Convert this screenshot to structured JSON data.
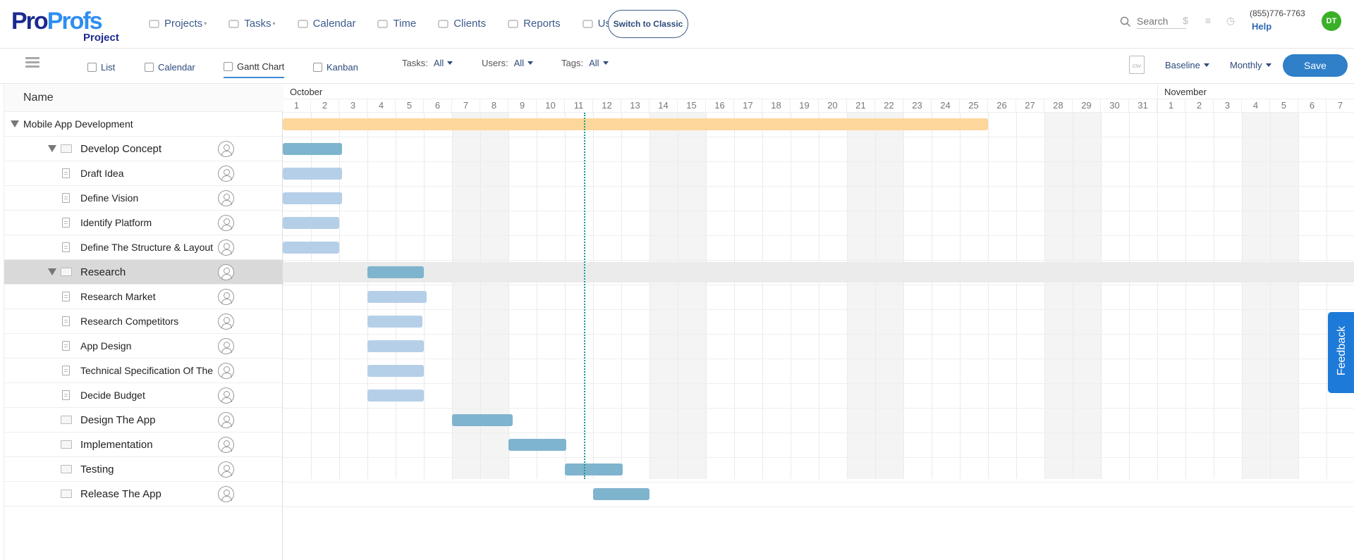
{
  "brand": {
    "logo_part1": "Pro",
    "logo_part2": "Profs",
    "logo_sub": "Project"
  },
  "nav": [
    {
      "label": "Projects",
      "icon": "briefcase-icon",
      "dropdown": true
    },
    {
      "label": "Tasks",
      "icon": "check-circle-icon",
      "dropdown": true
    },
    {
      "label": "Calendar",
      "icon": "calendar-icon",
      "dropdown": false
    },
    {
      "label": "Time",
      "icon": "clock-icon",
      "dropdown": false
    },
    {
      "label": "Clients",
      "icon": "clients-icon",
      "dropdown": false
    },
    {
      "label": "Reports",
      "icon": "bar-chart-icon",
      "dropdown": false
    },
    {
      "label": "Users",
      "icon": "user-icon",
      "dropdown": false
    }
  ],
  "switch_classic": "Switch to Classic",
  "search": {
    "placeholder": "Search"
  },
  "contact": {
    "phone": "(855)776-7763",
    "help": "Help"
  },
  "user_avatar": "DT",
  "views": {
    "list": "List",
    "calendar": "Calendar",
    "gantt": "Gantt Chart",
    "kanban": "Kanban"
  },
  "filters": {
    "tasks_label": "Tasks:",
    "tasks_value": "All",
    "users_label": "Users:",
    "users_value": "All",
    "tags_label": "Tags:",
    "tags_value": "All"
  },
  "baseline": "Baseline",
  "period": "Monthly",
  "save": "Save",
  "csv_icon": "CSV",
  "grid": {
    "name_header": "Name"
  },
  "months": [
    "October",
    "November"
  ],
  "days": [
    "1",
    "2",
    "3",
    "4",
    "5",
    "6",
    "7",
    "8",
    "9",
    "10",
    "11",
    "12",
    "13",
    "14",
    "15",
    "16",
    "17",
    "18",
    "19",
    "20",
    "21",
    "22",
    "23",
    "24",
    "25",
    "26",
    "27",
    "28",
    "29",
    "30",
    "31",
    "1",
    "2",
    "3",
    "4",
    "5",
    "6",
    "7"
  ],
  "tasks": [
    {
      "name": "Mobile App Development",
      "level": 0,
      "type": "project",
      "start": 0,
      "end": 25,
      "color": "#fdd79b"
    },
    {
      "name": "Develop Concept",
      "level": 1,
      "type": "group",
      "start": 0,
      "end": 2.1,
      "color": "#7fb4ce"
    },
    {
      "name": "Draft Idea",
      "level": 2,
      "type": "task",
      "start": 0,
      "end": 2.1,
      "color": "#b5cfe8"
    },
    {
      "name": "Define Vision",
      "level": 2,
      "type": "task",
      "start": 0,
      "end": 2.1,
      "color": "#b5cfe8"
    },
    {
      "name": "Identify Platform",
      "level": 2,
      "type": "task",
      "start": 0,
      "end": 2.0,
      "color": "#b5cfe8"
    },
    {
      "name": "Define The Structure & Layout c",
      "level": 2,
      "type": "task",
      "start": 0,
      "end": 2.0,
      "color": "#b5cfe8"
    },
    {
      "name": "Research",
      "level": 1,
      "type": "group",
      "start": 3,
      "end": 5.0,
      "color": "#7fb4ce",
      "selected": true
    },
    {
      "name": "Research Market",
      "level": 2,
      "type": "task",
      "start": 3,
      "end": 5.1,
      "color": "#b5cfe8"
    },
    {
      "name": "Research Competitors",
      "level": 2,
      "type": "task",
      "start": 3,
      "end": 4.95,
      "color": "#b5cfe8"
    },
    {
      "name": "App Design",
      "level": 2,
      "type": "task",
      "start": 3,
      "end": 5.0,
      "color": "#b5cfe8"
    },
    {
      "name": "Technical Specification Of The",
      "level": 2,
      "type": "task",
      "start": 3,
      "end": 5.0,
      "color": "#b5cfe8"
    },
    {
      "name": "Decide Budget",
      "level": 2,
      "type": "task",
      "start": 3,
      "end": 5.0,
      "color": "#b5cfe8"
    },
    {
      "name": "Design The App",
      "level": 1,
      "type": "group-flat",
      "start": 6,
      "end": 8.15,
      "color": "#7fb4ce"
    },
    {
      "name": "Implementation",
      "level": 1,
      "type": "group-flat",
      "start": 8,
      "end": 10.05,
      "color": "#7fb4ce"
    },
    {
      "name": "Testing",
      "level": 1,
      "type": "group-flat",
      "start": 10,
      "end": 12.05,
      "color": "#7fb4ce"
    },
    {
      "name": "Release The App",
      "level": 1,
      "type": "group-flat",
      "start": 11,
      "end": 13.0,
      "color": "#7fb4ce"
    }
  ],
  "feedback": "Feedback"
}
